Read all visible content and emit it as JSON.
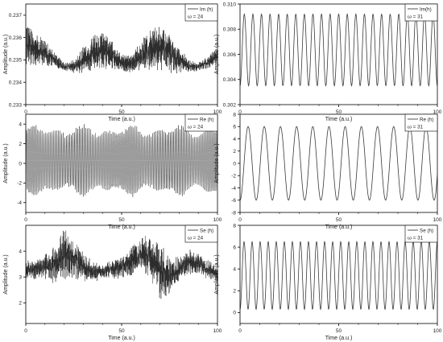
{
  "chart_data": [
    {
      "type": "line",
      "id": "p1",
      "xlabel": "Time (a.u.)",
      "ylabel": "Amplitude (a.u.)",
      "xlim": [
        0,
        100
      ],
      "ylim": [
        0.233,
        0.2375
      ],
      "xticks": [
        0,
        50,
        100
      ],
      "yticks": [
        0.233,
        0.234,
        0.235,
        0.236,
        0.237
      ],
      "ytick_labels": [
        "0.233",
        "0.234",
        "0.235",
        "0.236",
        "0.237"
      ],
      "legend": "Im (h)",
      "annotation": "ω = 24",
      "series": [
        {
          "name": "Im (h)",
          "x": [
            0,
            5,
            10,
            15,
            20,
            25,
            30,
            35,
            40,
            45,
            50,
            55,
            60,
            65,
            70,
            75,
            80,
            85,
            90,
            95,
            100
          ],
          "y": [
            0.2357,
            0.2355,
            0.2353,
            0.235,
            0.2347,
            0.2347,
            0.235,
            0.2353,
            0.2354,
            0.2352,
            0.2349,
            0.2348,
            0.2352,
            0.2355,
            0.2356,
            0.2353,
            0.235,
            0.2347,
            0.2347,
            0.2349,
            0.2352
          ],
          "swing": [
            0.001,
            0.0008,
            0.0006,
            0.0004,
            0.0002,
            0.0003,
            0.0006,
            0.0008,
            0.0009,
            0.0007,
            0.0004,
            0.0004,
            0.0007,
            0.001,
            0.0011,
            0.0009,
            0.0006,
            0.0003,
            0.0002,
            0.0003,
            0.0004
          ]
        }
      ]
    },
    {
      "type": "line",
      "id": "p2",
      "xlabel": "Time (a.u.)",
      "ylabel": "Amplitude (a.u.)",
      "xlim": [
        0,
        100
      ],
      "ylim": [
        0.302,
        0.31
      ],
      "xticks": [
        0,
        50,
        100
      ],
      "yticks": [
        0.302,
        0.304,
        0.306,
        0.308,
        0.31
      ],
      "ytick_labels": [
        "0.302",
        "0.304",
        "0.306",
        "0.308",
        "0.310"
      ],
      "legend": "Im(h)",
      "annotation": "ω = 31",
      "series": [
        {
          "name": "Im(h)",
          "y_min": 0.3035,
          "y_max": 0.3092,
          "cycles": 23
        }
      ]
    },
    {
      "type": "line",
      "id": "p3",
      "xlabel": "Time (a.u.)",
      "ylabel": "Amplitude (a.u.)",
      "xlim": [
        0,
        100
      ],
      "ylim": [
        -5,
        5
      ],
      "xticks": [
        0,
        50,
        100
      ],
      "yticks": [
        -4,
        -2,
        0,
        2,
        4
      ],
      "ytick_labels": [
        "-4",
        "-2",
        "0",
        "2",
        "4"
      ],
      "legend": "Re (h)",
      "annotation": "ω = 24",
      "series": [
        {
          "name": "Re (h)",
          "y_min": -3.2,
          "y_max": 3.8,
          "cycles": 120
        }
      ]
    },
    {
      "type": "line",
      "id": "p4",
      "xlabel": "Time (a.u.)",
      "ylabel": "Amplitude (a.u.)",
      "xlim": [
        0,
        100
      ],
      "ylim": [
        -8,
        8
      ],
      "xticks": [
        0,
        50,
        100
      ],
      "yticks": [
        -8,
        -6,
        -4,
        -2,
        0,
        2,
        4,
        6,
        8
      ],
      "ytick_labels": [
        "-8",
        "-6",
        "-4",
        "-2",
        "0",
        "2",
        "4",
        "6",
        "8"
      ],
      "legend": "Re (h)",
      "annotation": "ω = 31",
      "series": [
        {
          "name": "Re (h)",
          "y_min": -6.0,
          "y_max": 6.0,
          "cycles": 12.2
        }
      ]
    },
    {
      "type": "line",
      "id": "p5",
      "xlabel": "Time (a.u.)",
      "ylabel": "Amplitude (a.u.)",
      "xlim": [
        0,
        100
      ],
      "ylim": [
        1.2,
        5.0
      ],
      "xticks": [
        0,
        50,
        100
      ],
      "yticks": [
        2,
        3,
        4
      ],
      "ytick_labels": [
        "2",
        "3",
        "4"
      ],
      "legend": "Se (h)",
      "annotation": "ω = 24",
      "series": [
        {
          "name": "Se (h)",
          "x": [
            0,
            5,
            10,
            15,
            20,
            25,
            30,
            35,
            40,
            45,
            50,
            55,
            60,
            65,
            70,
            75,
            80,
            85,
            90,
            95,
            100
          ],
          "y": [
            3.3,
            3.3,
            3.4,
            3.5,
            3.9,
            3.7,
            3.4,
            3.2,
            3.2,
            3.3,
            3.4,
            3.6,
            3.9,
            3.8,
            3.2,
            3.0,
            3.3,
            3.6,
            3.5,
            3.3,
            3.1
          ],
          "swing": [
            0.4,
            0.4,
            0.5,
            0.8,
            1.0,
            0.9,
            0.6,
            0.4,
            0.3,
            0.4,
            0.5,
            0.6,
            0.7,
            0.9,
            1.2,
            0.8,
            0.5,
            0.5,
            0.4,
            0.4,
            0.3
          ]
        }
      ]
    },
    {
      "type": "line",
      "id": "p6",
      "xlabel": "Time (a.u.)",
      "ylabel": "Amplitude (a.u.)",
      "xlim": [
        0,
        100
      ],
      "ylim": [
        -1,
        8
      ],
      "xticks": [
        0,
        50,
        100
      ],
      "yticks": [
        0,
        2,
        4,
        6,
        8
      ],
      "ytick_labels": [
        "0",
        "2",
        "4",
        "6",
        "8"
      ],
      "legend": "Se (h)",
      "annotation": "ω = 31",
      "series": [
        {
          "name": "Se (h)",
          "y_min": 0.3,
          "y_max": 6.5,
          "cycles": 24.5
        }
      ]
    }
  ]
}
